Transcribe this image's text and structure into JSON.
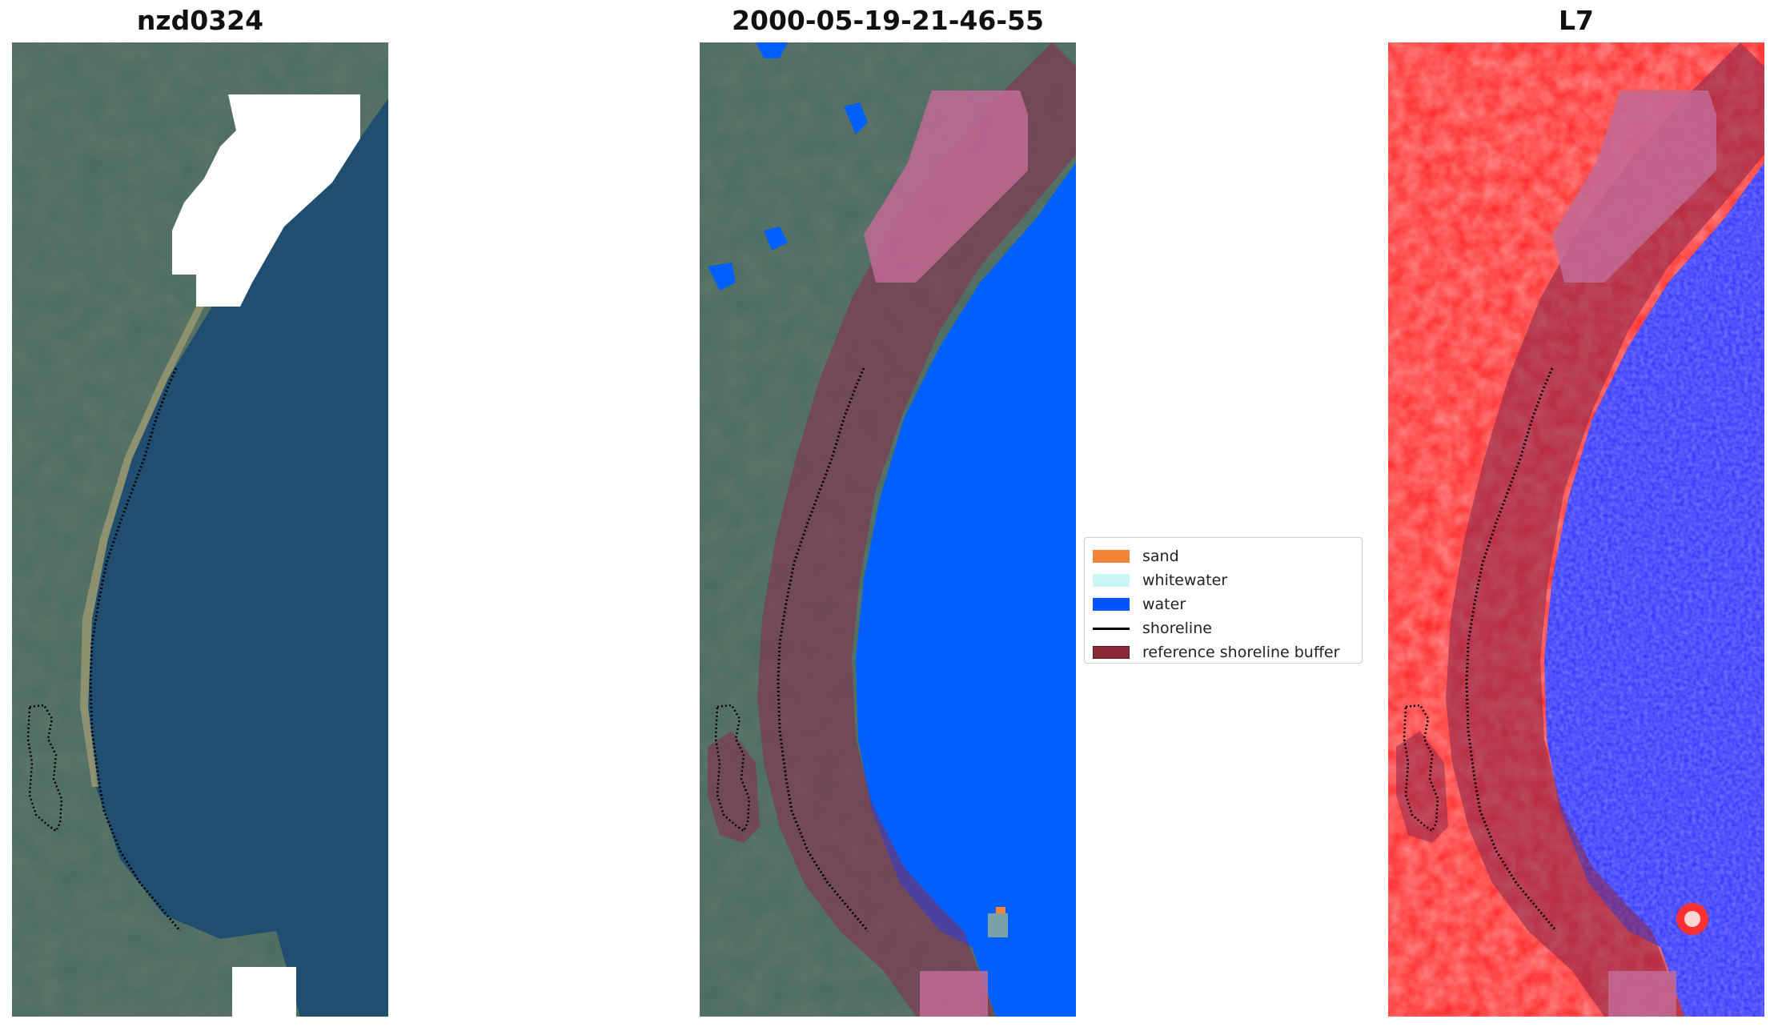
{
  "panels": [
    {
      "title": "nzd0324"
    },
    {
      "title": "2000-05-19-21-46-55"
    },
    {
      "title": "L7"
    }
  ],
  "legend": {
    "items": [
      {
        "label": "sand",
        "color": "#f58536",
        "kind": "patch"
      },
      {
        "label": "whitewater",
        "color": "#c8f7f5",
        "kind": "patch"
      },
      {
        "label": "water",
        "color": "#0055ff",
        "kind": "patch"
      },
      {
        "label": "shoreline",
        "color": "#000000",
        "kind": "line"
      },
      {
        "label": "reference shoreline buffer",
        "color": "#8b2a35",
        "kind": "patch"
      }
    ]
  },
  "colors": {
    "land_rgb": "#4b6a5f",
    "sea_rgb": "#1f4e70",
    "cloud": "#ffffff",
    "water_class": "#0060ff",
    "buffer": "#8b2a4d",
    "ndwi_land": "#ff2020",
    "ndwi_water": "#2a2aff",
    "sand_shore": "#9c9a72"
  }
}
